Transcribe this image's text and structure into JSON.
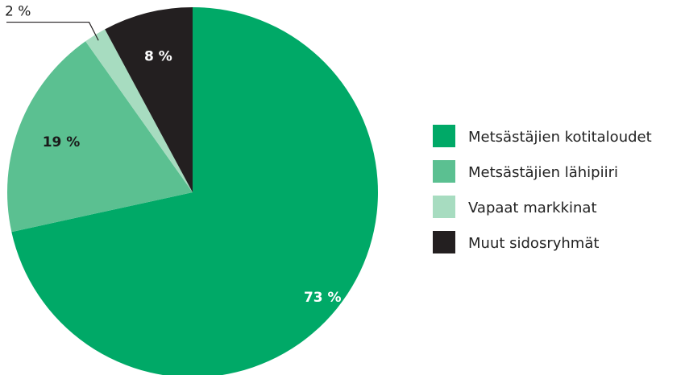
{
  "chart_data": {
    "type": "pie",
    "slices": [
      {
        "label": "Metsästäjien kotitaloudet",
        "value": 73,
        "value_label": "73 %",
        "color": "#00a967",
        "label_color": "#ffffff"
      },
      {
        "label": "Metsästäjien lähipiiri",
        "value": 19,
        "value_label": "19 %",
        "color": "#5bc091",
        "label_color": "#1a1a1a"
      },
      {
        "label": "Vapaat markkinat",
        "value": 2,
        "value_label": "2 %",
        "color": "#a7dcc0",
        "label_color": "#1a1a1a"
      },
      {
        "label": "Muut sidosryhmät",
        "value": 8,
        "value_label": "8 %",
        "color": "#231f20",
        "label_color": "#ffffff"
      }
    ],
    "start": "12 o'clock",
    "direction": "clockwise",
    "legend_position": "right",
    "grid": false
  }
}
